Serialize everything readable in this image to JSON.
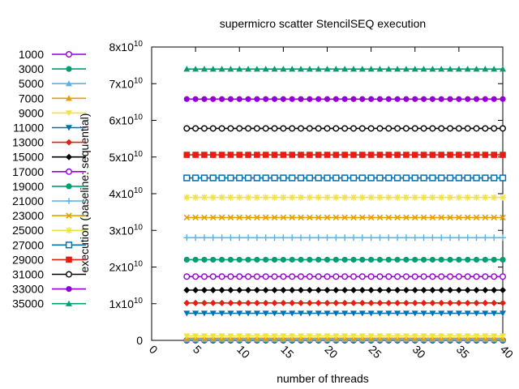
{
  "chart_data": {
    "type": "line",
    "title": "supermicro scatter StencilSEQ execution",
    "xlabel": "number of threads",
    "ylabel": "execution (baseline: sequential)",
    "xlim": [
      0,
      40
    ],
    "ylim": [
      0,
      80000000000
    ],
    "x_ticks": [
      0,
      5,
      10,
      15,
      20,
      25,
      30,
      35,
      40
    ],
    "y_ticks": [
      {
        "value": 0,
        "base": "0",
        "exp": ""
      },
      {
        "value": 10000000000,
        "base": "1x10",
        "exp": "10"
      },
      {
        "value": 20000000000,
        "base": "2x10",
        "exp": "10"
      },
      {
        "value": 30000000000,
        "base": "3x10",
        "exp": "10"
      },
      {
        "value": 40000000000,
        "base": "4x10",
        "exp": "10"
      },
      {
        "value": 50000000000,
        "base": "5x10",
        "exp": "10"
      },
      {
        "value": 60000000000,
        "base": "6x10",
        "exp": "10"
      },
      {
        "value": 70000000000,
        "base": "7x10",
        "exp": "10"
      },
      {
        "value": 80000000000,
        "base": "8x10",
        "exp": "10"
      }
    ],
    "x": [
      4,
      5,
      6,
      7,
      8,
      9,
      10,
      11,
      12,
      13,
      14,
      15,
      16,
      17,
      18,
      19,
      20,
      21,
      22,
      23,
      24,
      25,
      26,
      27,
      28,
      29,
      30,
      31,
      32,
      33,
      34,
      35,
      36,
      37,
      38,
      39,
      40
    ],
    "grid": false,
    "legend_position": "left",
    "series": [
      {
        "name": "1000",
        "value": 10000000,
        "color": "#9400d3",
        "marker": "circle-open"
      },
      {
        "name": "3000",
        "value": 80000000,
        "color": "#009e73",
        "marker": "circle"
      },
      {
        "name": "5000",
        "value": 250000000,
        "color": "#56b4e9",
        "marker": "triangle-up"
      },
      {
        "name": "7000",
        "value": 600000000,
        "color": "#e69f00",
        "marker": "triangle-up"
      },
      {
        "name": "9000",
        "value": 1200000000,
        "color": "#f0e442",
        "marker": "triangle-down"
      },
      {
        "name": "11000",
        "value": 7400000000,
        "color": "#0072b2",
        "marker": "triangle-down"
      },
      {
        "name": "13000",
        "value": 10200000000,
        "color": "#e51e10",
        "marker": "diamond"
      },
      {
        "name": "15000",
        "value": 13700000000,
        "color": "#000000",
        "marker": "diamond"
      },
      {
        "name": "17000",
        "value": 17400000000,
        "color": "#9400d3",
        "marker": "circle-open"
      },
      {
        "name": "19000",
        "value": 22000000000,
        "color": "#009e73",
        "marker": "circle"
      },
      {
        "name": "21000",
        "value": 28000000000,
        "color": "#56b4e9",
        "marker": "plus"
      },
      {
        "name": "23000",
        "value": 33500000000,
        "color": "#e69f00",
        "marker": "cross"
      },
      {
        "name": "25000",
        "value": 39000000000,
        "color": "#f0e442",
        "marker": "star"
      },
      {
        "name": "27000",
        "value": 44300000000,
        "color": "#0072b2",
        "marker": "square-open"
      },
      {
        "name": "29000",
        "value": 50600000000,
        "color": "#e51e10",
        "marker": "square"
      },
      {
        "name": "31000",
        "value": 57800000000,
        "color": "#000000",
        "marker": "circle-open"
      },
      {
        "name": "33000",
        "value": 65800000000,
        "color": "#9400d3",
        "marker": "circle"
      },
      {
        "name": "35000",
        "value": 74000000000,
        "color": "#009e73",
        "marker": "triangle-up"
      }
    ]
  }
}
